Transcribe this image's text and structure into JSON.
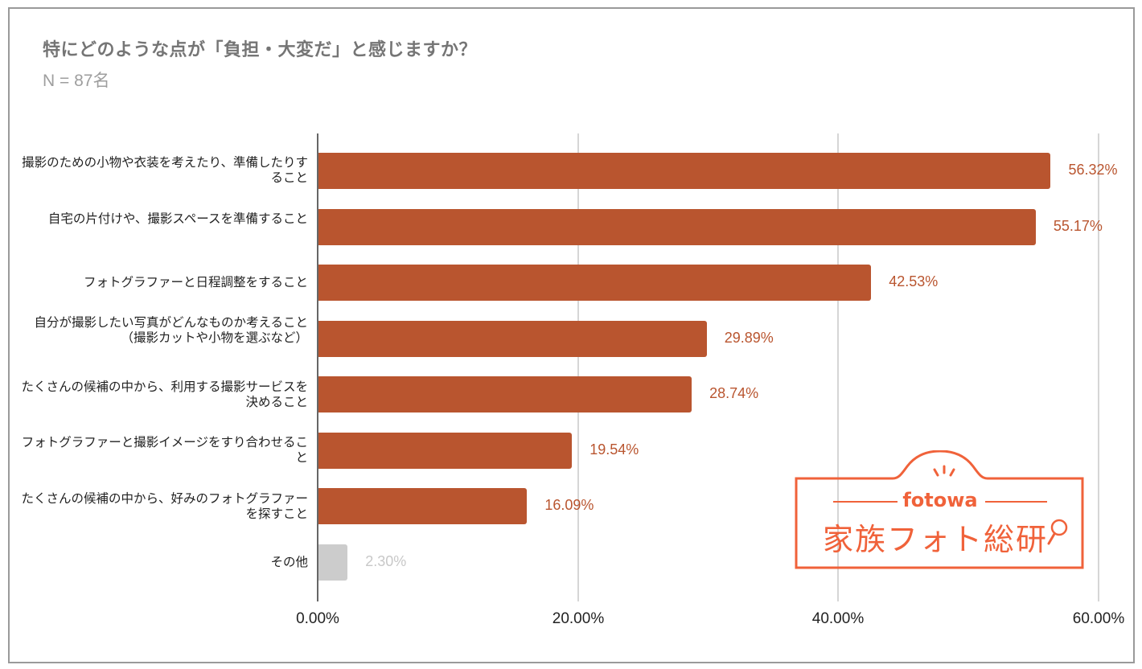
{
  "chart_data": {
    "type": "bar",
    "orientation": "horizontal",
    "title": "特にどのような点が「負担・大変だ」と感じますか？",
    "subtitle": "N = 87名",
    "xlabel": "",
    "ylabel": "",
    "xlim": [
      0,
      60
    ],
    "grid": true,
    "legend": null,
    "x_ticks": [
      "0.00%",
      "20.00%",
      "40.00%",
      "60.00%"
    ],
    "categories": [
      "撮影のための小物や衣装を考えたり、準備したりすること",
      "自宅の片付けや、撮影スペースを準備すること",
      "フォトグラファーと日程調整をすること",
      "自分が撮影したい写真がどんなものか考えること（撮影カットや小物を選ぶなど）",
      "たくさんの候補の中から、利用する撮影サービスを決めること",
      "フォトグラファーと撮影イメージをすり合わせること",
      "たくさんの候補の中から、好みのフォトグラファーを探すこと",
      "その他"
    ],
    "values": [
      56.32,
      55.17,
      42.53,
      29.89,
      28.74,
      19.54,
      16.09,
      2.3
    ],
    "value_labels": [
      "56.32%",
      "55.17%",
      "42.53%",
      "29.89%",
      "28.74%",
      "19.54%",
      "16.09%",
      "2.30%"
    ],
    "colors": {
      "primary_bar": "#b9552f",
      "other_bar": "#cccccc",
      "primary_label": "#b9552f",
      "other_label": "#c8c8c8"
    }
  },
  "header": {
    "title": "特にどのような点が「負担・大変だ」と感じますか？",
    "subtitle": "N = 87名"
  },
  "rows": [
    {
      "label": "撮影のための小物や衣装を考えたり、準備したりすること",
      "value": 56.32,
      "value_label": "56.32%"
    },
    {
      "label": "自宅の片付けや、撮影スペースを準備すること",
      "value": 55.17,
      "value_label": "55.17%"
    },
    {
      "label": "フォトグラファーと日程調整をすること",
      "value": 42.53,
      "value_label": "42.53%"
    },
    {
      "label": "自分が撮影したい写真がどんなものか考えること（撮影カットや小物を選ぶなど）",
      "value": 29.89,
      "value_label": "29.89%"
    },
    {
      "label": "たくさんの候補の中から、利用する撮影サービスを決めること",
      "value": 28.74,
      "value_label": "28.74%"
    },
    {
      "label": "フォトグラファーと撮影イメージをすり合わせること",
      "value": 19.54,
      "value_label": "19.54%"
    },
    {
      "label": "たくさんの候補の中から、好みのフォトグラファーを探すこと",
      "value": 16.09,
      "value_label": "16.09%"
    },
    {
      "label": "その他",
      "value": 2.3,
      "value_label": "2.30%"
    }
  ],
  "axis": {
    "ticks": [
      {
        "label": "0.00%",
        "value": 0
      },
      {
        "label": "20.00%",
        "value": 20
      },
      {
        "label": "40.00%",
        "value": 40
      },
      {
        "label": "60.00%",
        "value": 60
      }
    ]
  },
  "logo": {
    "brand": "fotowa",
    "name": "家族フォト総研",
    "color": "#f0623a"
  }
}
